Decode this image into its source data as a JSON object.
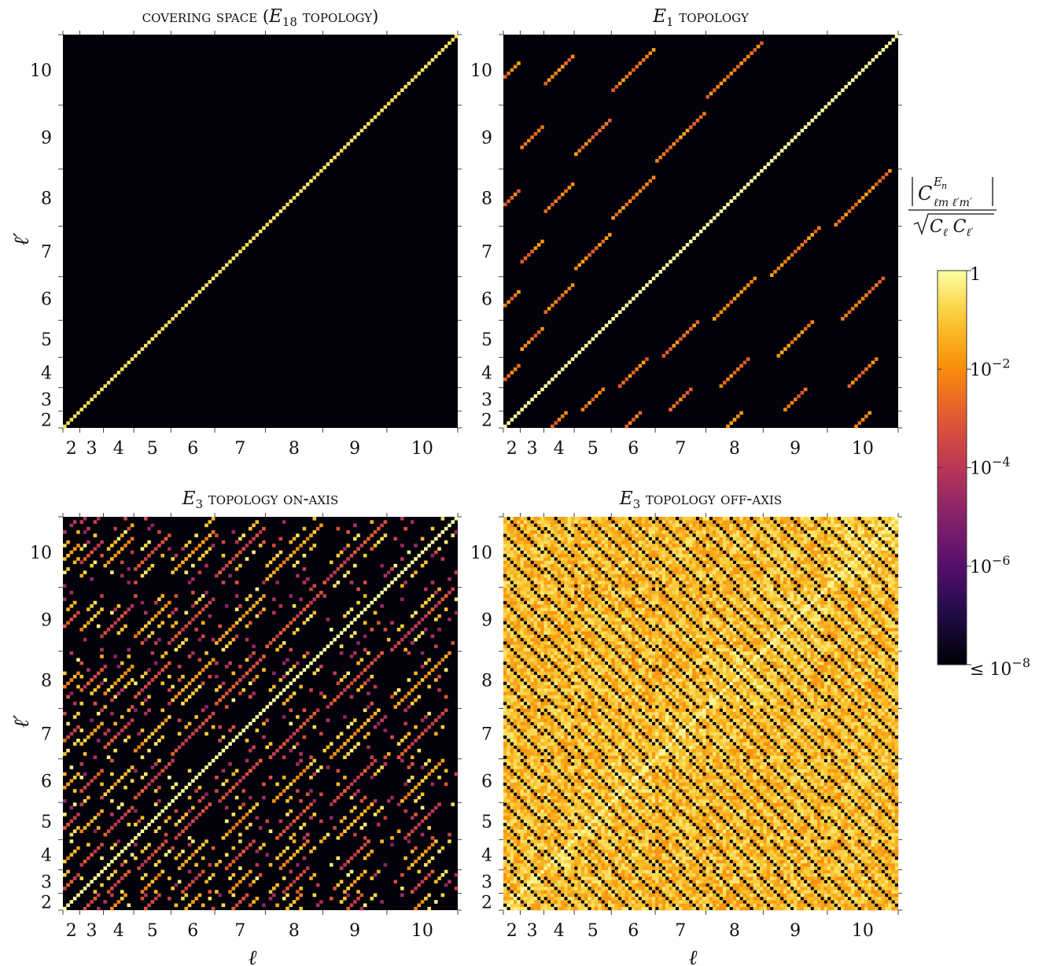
{
  "chart_data": {
    "type": "heatmap",
    "description_free": true,
    "multipoles": [
      2,
      3,
      4,
      5,
      6,
      7,
      8,
      9,
      10
    ],
    "x_tick_labels": [
      "2",
      "3",
      "4",
      "5",
      "6",
      "7",
      "8",
      "9",
      "10"
    ],
    "y_tick_labels": [
      "2",
      "3",
      "4",
      "5",
      "6",
      "7",
      "8",
      "9",
      "10"
    ],
    "xlabel": "ℓ",
    "ylabel": "ℓ′",
    "panels": [
      {
        "id": "covering",
        "title_prefix": "covering space (",
        "title_math": "E",
        "title_sub": "18",
        "title_suffix": " topology)",
        "pattern": "diagonal"
      },
      {
        "id": "e1",
        "title_prefix": "",
        "title_math": "E",
        "title_sub": "1",
        "title_suffix": " topology",
        "pattern": "e1"
      },
      {
        "id": "e3on",
        "title_prefix": "",
        "title_math": "E",
        "title_sub": "3",
        "title_suffix": " topology on-axis",
        "pattern": "e3on"
      },
      {
        "id": "e3off",
        "title_prefix": "",
        "title_math": "E",
        "title_sub": "3",
        "title_suffix": " topology off-axis",
        "pattern": "e3off"
      }
    ],
    "colorbar": {
      "scale": "log",
      "range": [
        1e-08,
        1
      ],
      "tick_labels": [
        "1",
        "10",
        "10",
        "10",
        "≤ 10"
      ],
      "tick_exponents": [
        "",
        "−2",
        "−4",
        "−6",
        "−8"
      ],
      "tick_values": [
        1,
        0.01,
        0.0001,
        1e-06,
        1e-08
      ],
      "colormap": "inferno",
      "label_numerator": "C",
      "label_super": "E",
      "label_super_sub": "n",
      "label_sub": "ℓm ℓ′m′",
      "label_denominator_prefix": "C",
      "label_denominator_sub1": "ℓ",
      "label_denominator_sub2": "ℓ′"
    }
  }
}
